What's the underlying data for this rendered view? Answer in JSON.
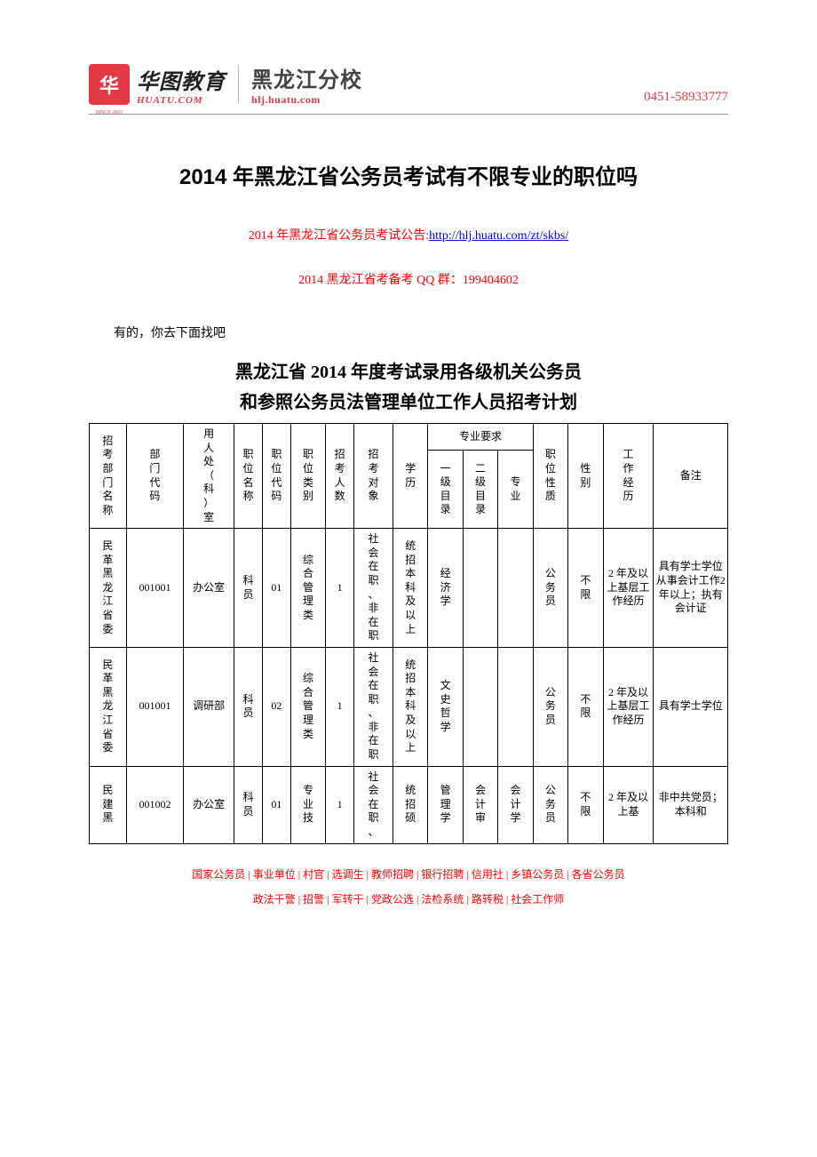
{
  "header": {
    "logo1_cn": "华图教育",
    "logo1_en": "HUATU.COM",
    "logo1_badge": "华",
    "logo1_badge_sub": "SINCE 2001",
    "logo2_cn": "黑龙江分校",
    "logo2_en": "hlj.huatu.com",
    "phone": "0451-58933777"
  },
  "title": "2014 年黑龙江省公务员考试有不限专业的职位吗",
  "notice": {
    "prefix": "2014 年黑龙江省公务员考试公告:",
    "link_text": "http://hlj.huatu.com/zt/skbs/",
    "link_href": "http://hlj.huatu.com/zt/skbs/"
  },
  "qq_line": "2014 黑龙江省考备考 QQ 群：199404602",
  "body_text": "有的，你去下面找吧",
  "subtitle_l1": "黑龙江省 2014 年度考试录用各级机关公务员",
  "subtitle_l2": "和参照公务员法管理单位工作人员招考计划",
  "table": {
    "headers": {
      "c1": "招考部门名称",
      "c2": "部门代码",
      "c3": "用人处（科）室",
      "c4": "职位名称",
      "c5": "职位代码",
      "c6": "职位类别",
      "c7": "招考人数",
      "c8": "招考对象",
      "c9": "学历",
      "c10_group": "专业要求",
      "c10a": "一级目录",
      "c10b": "二级目录",
      "c10c": "专业",
      "c11": "职位性质",
      "c12": "性别",
      "c13": "工作经历",
      "c14": "备注"
    },
    "col_widths_pct": [
      5.5,
      8.5,
      7.5,
      4.2,
      4.2,
      5.2,
      4.2,
      5.8,
      5.2,
      5.2,
      5.2,
      5.2,
      5.2,
      5.2,
      7.5,
      11.0
    ],
    "rows": [
      {
        "c1": "民革黑龙江省委",
        "c2": "001001",
        "c3": "办公室",
        "c4": "科员",
        "c5": "01",
        "c6": "综合管理类",
        "c7": "1",
        "c8": "社会在职、非在职",
        "c9": "统招本科及以上",
        "c10a": "经济学",
        "c10b": "",
        "c10c": "",
        "c11": "公务员",
        "c12": "不限",
        "c13": "2 年及以上基层工作经历",
        "c14": "具有学士学位从事会计工作2 年以上；执有会计证"
      },
      {
        "c1": "民革黑龙江省委",
        "c2": "001001",
        "c3": "调研部",
        "c4": "科员",
        "c5": "02",
        "c6": "综合管理类",
        "c7": "1",
        "c8": "社会在职、非在职",
        "c9": "统招本科及以上",
        "c10a": "文史哲学",
        "c10b": "",
        "c10c": "",
        "c11": "公务员",
        "c12": "不限",
        "c13": "2 年及以上基层工作经历",
        "c14": "具有学士学位"
      },
      {
        "c1": "民建黑",
        "c2": "001002",
        "c3": "办公室",
        "c4": "科员",
        "c5": "01",
        "c6": "专业技",
        "c7": "1",
        "c8": "社会在职、",
        "c9": "统招硕",
        "c10a": "管理学",
        "c10b": "会计审",
        "c10c": "会计学",
        "c11": "公务员",
        "c12": "不限",
        "c13": "2 年及以上基",
        "c14": "非中共党员；本科和"
      }
    ]
  },
  "footer": {
    "line1": [
      "国家公务员",
      "事业单位",
      "村官",
      "选调生",
      "教师招聘",
      "银行招聘",
      "信用社",
      "乡镇公务员",
      "各省公务员"
    ],
    "line2": [
      "政法干警",
      "招警",
      "军转干",
      "党政公选",
      "法检系统",
      "路转税",
      "社会工作师"
    ]
  },
  "colors": {
    "accent": "#e63946",
    "red_text": "#ff0000",
    "link": "#0000ee",
    "border": "#000000",
    "bg": "#ffffff"
  }
}
